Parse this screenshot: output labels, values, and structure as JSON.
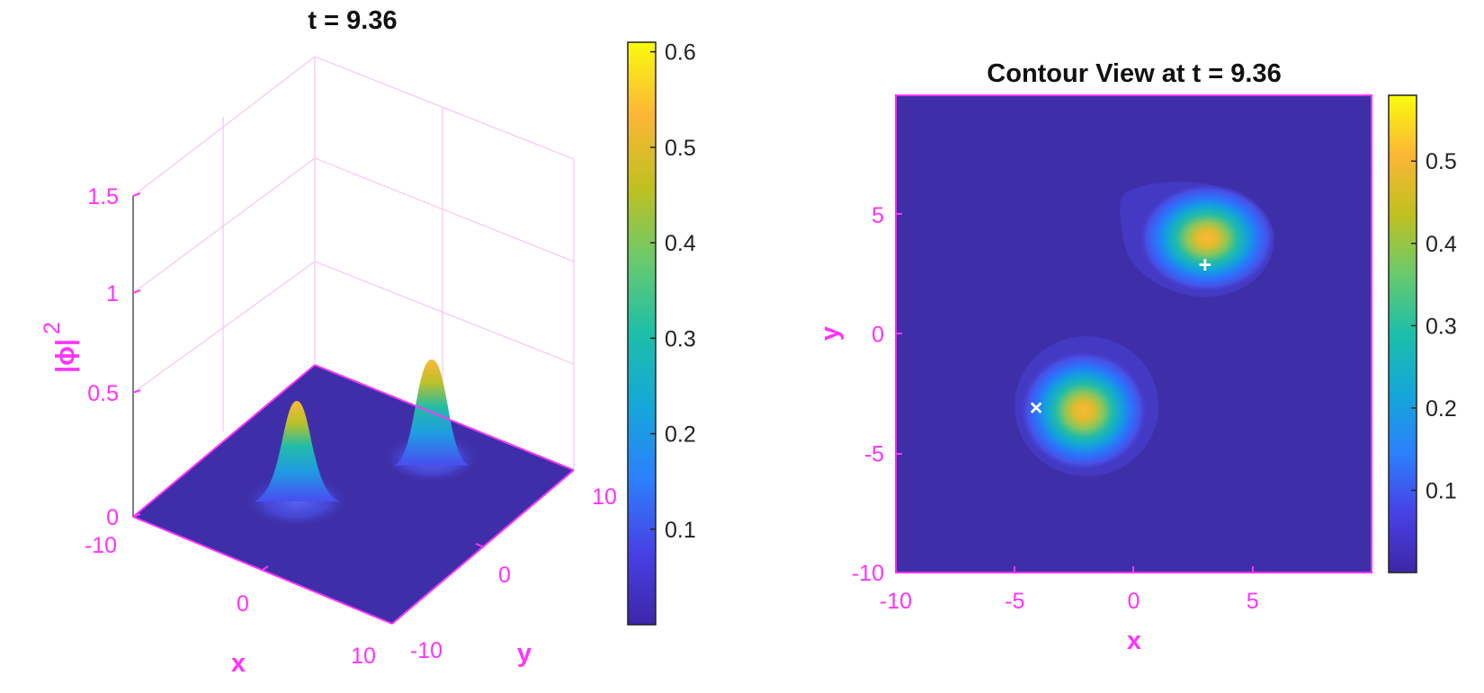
{
  "colors": {
    "axis": "#ff33ff",
    "grid": "#f4c6f4",
    "background_field": "#3e2fa8",
    "title": "#111111",
    "marker": "#ffffff"
  },
  "colormap": "parula",
  "chart_data": [
    {
      "type": "surface",
      "title": "t = 9.36",
      "xlabel": "x",
      "ylabel": "y",
      "zlabel": "|ϕ|²",
      "zlabel_base": "|ϕ|",
      "zlabel_sup": "2",
      "xlim": [
        -10,
        10
      ],
      "ylim": [
        -10,
        10
      ],
      "zlim": [
        0,
        1.5
      ],
      "x_ticks": [
        "-10",
        "0",
        "10"
      ],
      "y_ticks": [
        "-10",
        "0",
        "10"
      ],
      "z_ticks": [
        "0",
        "0.5",
        "1",
        "1.5"
      ],
      "grid": true,
      "peaks": [
        {
          "x": -2.2,
          "y": -3.4,
          "height": 0.55
        },
        {
          "x": 3.4,
          "y": 3.9,
          "height": 0.59
        }
      ],
      "colorbar": {
        "min": 0,
        "max": 0.61,
        "ticks": [
          "0.1",
          "0.2",
          "0.3",
          "0.4",
          "0.5",
          "0.6"
        ]
      }
    },
    {
      "type": "heatmap",
      "title": "Contour View at t = 9.36",
      "xlabel": "x",
      "ylabel": "y",
      "xlim": [
        -10,
        10
      ],
      "ylim": [
        -10,
        10
      ],
      "x_ticks": [
        "-10",
        "-5",
        "0",
        "5"
      ],
      "y_ticks": [
        "-10",
        "-5",
        "0",
        "5"
      ],
      "peaks": [
        {
          "x": -2.2,
          "y": -3.4,
          "height": 0.55
        },
        {
          "x": 3.4,
          "y": 3.9,
          "height": 0.58
        }
      ],
      "markers": [
        {
          "symbol": "×",
          "x": -4.1,
          "y": -3.0
        },
        {
          "symbol": "+",
          "x": 3.0,
          "y": 3.0
        }
      ],
      "colorbar": {
        "min": 0,
        "max": 0.58,
        "ticks": [
          "0.1",
          "0.2",
          "0.3",
          "0.4",
          "0.5"
        ]
      }
    }
  ]
}
